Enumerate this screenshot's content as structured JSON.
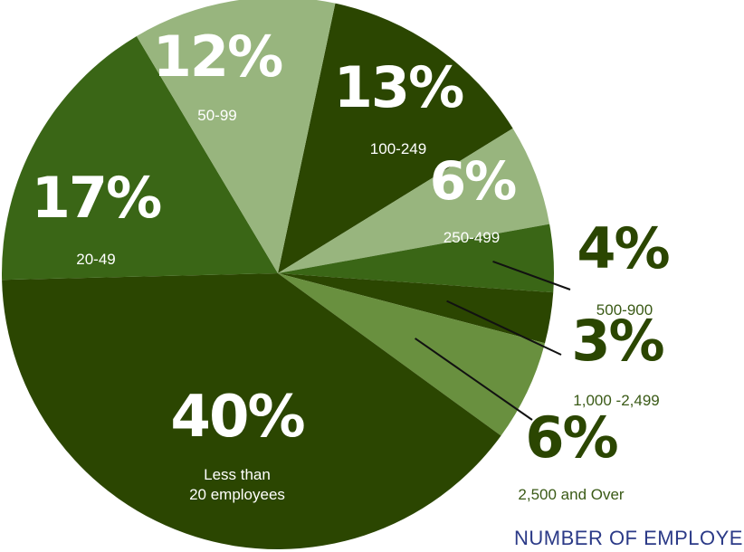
{
  "chart_data": {
    "type": "pie",
    "caption": "NUMBER OF EMPLOYEES",
    "slices": [
      {
        "category": "100-249",
        "value": 13,
        "label": "13%",
        "color": "#2b4601"
      },
      {
        "category": "250-499",
        "value": 6,
        "label": "6%",
        "color": "#98b57e"
      },
      {
        "category": "500-900",
        "value": 4,
        "label": "4%",
        "color": "#3a6616"
      },
      {
        "category": "1,000 -2,499",
        "value": 3,
        "label": "3%",
        "color": "#2b4601"
      },
      {
        "category": "2,500 and Over",
        "value": 6,
        "label": "6%",
        "color": "#69903f"
      },
      {
        "category": "Less than 20 employees",
        "value": 40,
        "label": "40%",
        "color": "#2b4601"
      },
      {
        "category": "20-49",
        "value": 17,
        "label": "17%",
        "color": "#3a6616"
      },
      {
        "category": "50-99",
        "value": 12,
        "label": "12%",
        "color": "#98b57e"
      }
    ],
    "category_lines": {
      "Less than 20 employees": [
        "Less than",
        "20 employees"
      ]
    }
  }
}
